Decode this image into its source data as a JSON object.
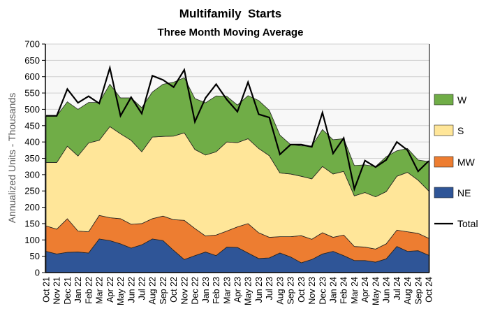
{
  "chart_data": {
    "type": "area",
    "stacked": true,
    "title": "Multifamily  Starts",
    "subtitle": "Three Month Moving Average",
    "ylabel": "Annualized Units - Thousands",
    "xlabel": "",
    "ylim": [
      0,
      700
    ],
    "yticks": [
      0,
      50,
      100,
      150,
      200,
      250,
      300,
      350,
      400,
      450,
      500,
      550,
      600,
      650,
      700
    ],
    "grid": true,
    "legend_position": "right",
    "categories": [
      "Oct 21",
      "Nov 21",
      "Dec 21",
      "Jan 22",
      "Feb 22",
      "Mar 22",
      "Apr 22",
      "May 22",
      "Jun 22",
      "Jul 22",
      "Aug 22",
      "Sep 22",
      "Oct 22",
      "Nov 22",
      "Dec 22",
      "Jan 23",
      "Feb 23",
      "Mar 23",
      "Apr 23",
      "May 23",
      "Jun 23",
      "Jul 23",
      "Aug 23",
      "Sep 23",
      "Oct 23",
      "Nov 23",
      "Dec 23",
      "Jan 24",
      "Feb 24",
      "Mar 24",
      "Apr 24",
      "May 24",
      "Jun 24",
      "Jul 24",
      "Aug 24",
      "Sep 24",
      "Oct 24"
    ],
    "series": [
      {
        "name": "NE",
        "color": "#2f5597",
        "values": [
          65,
          57,
          62,
          63,
          60,
          103,
          98,
          88,
          75,
          85,
          103,
          98,
          68,
          40,
          52,
          63,
          52,
          78,
          77,
          60,
          43,
          45,
          60,
          48,
          30,
          40,
          57,
          65,
          52,
          37,
          37,
          32,
          42,
          80,
          65,
          67,
          53
        ]
      },
      {
        "name": "MW",
        "color": "#ed7d31",
        "values": [
          78,
          76,
          103,
          64,
          65,
          72,
          70,
          77,
          73,
          65,
          62,
          75,
          94,
          120,
          83,
          49,
          63,
          49,
          63,
          90,
          79,
          63,
          50,
          62,
          83,
          62,
          65,
          43,
          63,
          43,
          41,
          40,
          46,
          50,
          60,
          53,
          52
        ]
      },
      {
        "name": "S",
        "color": "#ffe699",
        "values": [
          194,
          204,
          222,
          230,
          272,
          230,
          279,
          260,
          257,
          220,
          250,
          244,
          256,
          268,
          242,
          248,
          255,
          273,
          258,
          260,
          258,
          250,
          195,
          192,
          182,
          185,
          203,
          194,
          195,
          155,
          167,
          160,
          160,
          165,
          182,
          163,
          145
        ]
      },
      {
        "name": "W",
        "color": "#70ad47",
        "values": [
          143,
          143,
          136,
          143,
          124,
          116,
          130,
          110,
          130,
          135,
          138,
          160,
          165,
          169,
          156,
          160,
          171,
          140,
          115,
          132,
          147,
          139,
          116,
          90,
          93,
          101,
          113,
          105,
          100,
          93,
          85,
          93,
          107,
          78,
          73,
          62,
          90
        ]
      }
    ],
    "total": {
      "name": "Total",
      "color": "#000000",
      "values": [
        480,
        480,
        562,
        520,
        540,
        518,
        627,
        480,
        537,
        487,
        603,
        590,
        568,
        621,
        462,
        535,
        577,
        530,
        493,
        583,
        485,
        475,
        362,
        392,
        392,
        385,
        490,
        365,
        412,
        256,
        343,
        323,
        345,
        400,
        375,
        310,
        342
      ]
    },
    "legend_order": [
      "W",
      "S",
      "MW",
      "NE",
      "Total"
    ]
  }
}
